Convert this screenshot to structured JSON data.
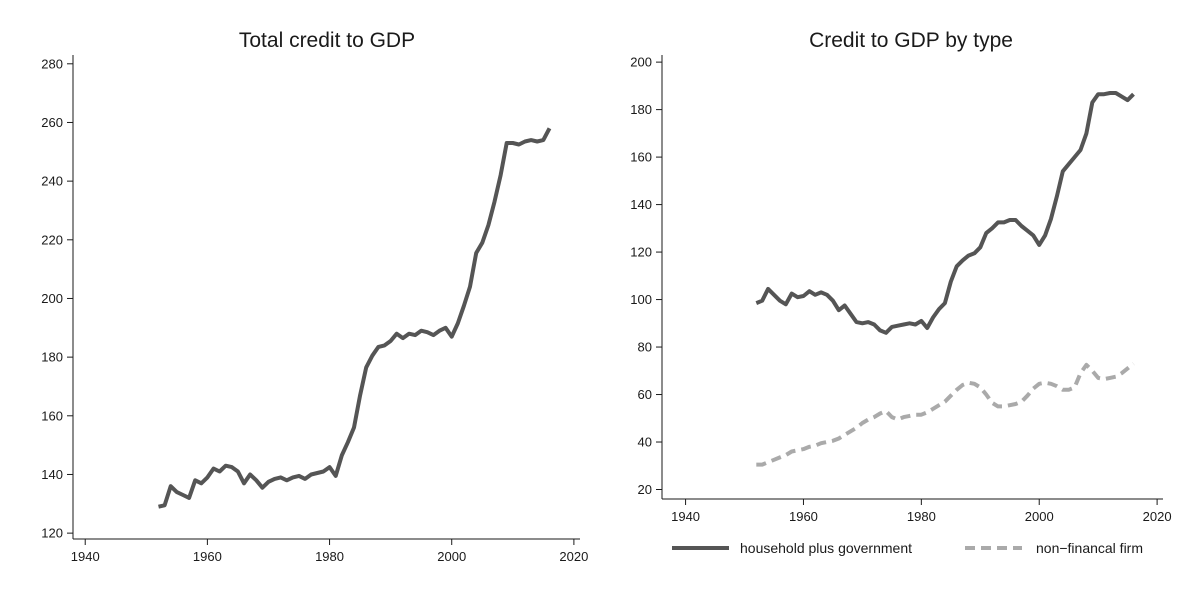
{
  "chart_data": [
    {
      "type": "line",
      "title": "Total credit to GDP",
      "xlabel": "",
      "ylabel": "",
      "xlim": [
        1938,
        2021
      ],
      "ylim": [
        118,
        283
      ],
      "x_ticks": [
        1940,
        1960,
        1980,
        2000,
        2020
      ],
      "y_ticks": [
        120,
        140,
        160,
        180,
        200,
        220,
        240,
        260,
        280
      ],
      "grid": false,
      "series": [
        {
          "color": "#555555",
          "style": "solid",
          "points": [
            [
              1952,
              129
            ],
            [
              1953,
              129.5
            ],
            [
              1954,
              136
            ],
            [
              1955,
              134
            ],
            [
              1956,
              133
            ],
            [
              1957,
              132
            ],
            [
              1958,
              138
            ],
            [
              1959,
              137
            ],
            [
              1960,
              139
            ],
            [
              1961,
              142
            ],
            [
              1962,
              141
            ],
            [
              1963,
              143
            ],
            [
              1964,
              142.5
            ],
            [
              1965,
              141
            ],
            [
              1966,
              137
            ],
            [
              1967,
              140
            ],
            [
              1968,
              138
            ],
            [
              1969,
              135.5
            ],
            [
              1970,
              137.5
            ],
            [
              1971,
              138.5
            ],
            [
              1972,
              139
            ],
            [
              1973,
              138
            ],
            [
              1974,
              139
            ],
            [
              1975,
              139.5
            ],
            [
              1976,
              138.5
            ],
            [
              1977,
              140
            ],
            [
              1978,
              140.5
            ],
            [
              1979,
              141
            ],
            [
              1980,
              142.5
            ],
            [
              1981,
              139.5
            ],
            [
              1982,
              146.5
            ],
            [
              1983,
              151
            ],
            [
              1984,
              156
            ],
            [
              1985,
              167
            ],
            [
              1986,
              176.5
            ],
            [
              1987,
              180.5
            ],
            [
              1988,
              183.5
            ],
            [
              1989,
              184
            ],
            [
              1990,
              185.5
            ],
            [
              1991,
              188
            ],
            [
              1992,
              186.5
            ],
            [
              1993,
              188
            ],
            [
              1994,
              187.5
            ],
            [
              1995,
              189
            ],
            [
              1996,
              188.5
            ],
            [
              1997,
              187.5
            ],
            [
              1998,
              189
            ],
            [
              1999,
              190
            ],
            [
              2000,
              187
            ],
            [
              2001,
              191.5
            ],
            [
              2002,
              197.5
            ],
            [
              2003,
              204
            ],
            [
              2004,
              215.5
            ],
            [
              2005,
              219
            ],
            [
              2006,
              225
            ],
            [
              2007,
              233
            ],
            [
              2008,
              242
            ],
            [
              2009,
              253
            ],
            [
              2010,
              253
            ],
            [
              2011,
              252.5
            ],
            [
              2012,
              253.5
            ],
            [
              2013,
              254
            ],
            [
              2014,
              253.5
            ],
            [
              2015,
              254
            ],
            [
              2016,
              258
            ]
          ]
        }
      ]
    },
    {
      "type": "line",
      "title": "Credit to GDP by type",
      "xlabel": "",
      "ylabel": "",
      "xlim": [
        1936,
        2021
      ],
      "ylim": [
        16,
        203
      ],
      "x_ticks": [
        1940,
        1960,
        1980,
        2000,
        2020
      ],
      "y_ticks": [
        20,
        40,
        60,
        80,
        100,
        120,
        140,
        160,
        180,
        200
      ],
      "grid": false,
      "legend_position": "bottom",
      "series": [
        {
          "name": "household plus government",
          "color": "#555555",
          "style": "solid",
          "points": [
            [
              1952,
              98.5
            ],
            [
              1953,
              99.5
            ],
            [
              1954,
              104.5
            ],
            [
              1955,
              102
            ],
            [
              1956,
              99.5
            ],
            [
              1957,
              98
            ],
            [
              1958,
              102.5
            ],
            [
              1959,
              101
            ],
            [
              1960,
              101.5
            ],
            [
              1961,
              103.5
            ],
            [
              1962,
              102
            ],
            [
              1963,
              103
            ],
            [
              1964,
              102
            ],
            [
              1965,
              99.5
            ],
            [
              1966,
              95.5
            ],
            [
              1967,
              97.5
            ],
            [
              1968,
              94
            ],
            [
              1969,
              90.5
            ],
            [
              1970,
              90
            ],
            [
              1971,
              90.5
            ],
            [
              1972,
              89.5
            ],
            [
              1973,
              87
            ],
            [
              1974,
              86
            ],
            [
              1975,
              88.5
            ],
            [
              1976,
              89
            ],
            [
              1977,
              89.5
            ],
            [
              1978,
              90
            ],
            [
              1979,
              89.5
            ],
            [
              1980,
              91
            ],
            [
              1981,
              88
            ],
            [
              1982,
              92.5
            ],
            [
              1983,
              96
            ],
            [
              1984,
              98.5
            ],
            [
              1985,
              107.5
            ],
            [
              1986,
              114
            ],
            [
              1987,
              116.5
            ],
            [
              1988,
              118.5
            ],
            [
              1989,
              119.5
            ],
            [
              1990,
              122
            ],
            [
              1991,
              128
            ],
            [
              1992,
              130
            ],
            [
              1993,
              132.5
            ],
            [
              1994,
              132.5
            ],
            [
              1995,
              133.5
            ],
            [
              1996,
              133.5
            ],
            [
              1997,
              131
            ],
            [
              1998,
              129
            ],
            [
              1999,
              127
            ],
            [
              2000,
              123
            ],
            [
              2001,
              127
            ],
            [
              2002,
              134
            ],
            [
              2003,
              143.5
            ],
            [
              2004,
              154
            ],
            [
              2005,
              157
            ],
            [
              2006,
              160
            ],
            [
              2007,
              163
            ],
            [
              2008,
              170
            ],
            [
              2009,
              183
            ],
            [
              2010,
              186.5
            ],
            [
              2011,
              186.5
            ],
            [
              2012,
              187
            ],
            [
              2013,
              187
            ],
            [
              2014,
              185.5
            ],
            [
              2015,
              184
            ],
            [
              2016,
              186.5
            ]
          ]
        },
        {
          "name": "non−financal firm",
          "color": "#aaaaaa",
          "style": "dashed",
          "points": [
            [
              1952,
              30.5
            ],
            [
              1953,
              30.5
            ],
            [
              1954,
              31.5
            ],
            [
              1955,
              32.5
            ],
            [
              1956,
              33.5
            ],
            [
              1957,
              34.5
            ],
            [
              1958,
              36
            ],
            [
              1959,
              36.5
            ],
            [
              1960,
              37
            ],
            [
              1961,
              38
            ],
            [
              1962,
              38.5
            ],
            [
              1963,
              39.5
            ],
            [
              1964,
              40
            ],
            [
              1965,
              40.5
            ],
            [
              1966,
              41.5
            ],
            [
              1967,
              43
            ],
            [
              1968,
              44.5
            ],
            [
              1969,
              46
            ],
            [
              1970,
              48
            ],
            [
              1971,
              49.5
            ],
            [
              1972,
              50.5
            ],
            [
              1973,
              52
            ],
            [
              1974,
              53
            ],
            [
              1975,
              50.5
            ],
            [
              1976,
              49.5
            ],
            [
              1977,
              50.5
            ],
            [
              1978,
              51
            ],
            [
              1979,
              51.5
            ],
            [
              1980,
              51.5
            ],
            [
              1981,
              52.5
            ],
            [
              1982,
              54
            ],
            [
              1983,
              55.5
            ],
            [
              1984,
              57
            ],
            [
              1985,
              59.5
            ],
            [
              1986,
              62
            ],
            [
              1987,
              64
            ],
            [
              1988,
              65
            ],
            [
              1989,
              64.5
            ],
            [
              1990,
              63
            ],
            [
              1991,
              60
            ],
            [
              1992,
              56.5
            ],
            [
              1993,
              55
            ],
            [
              1994,
              55
            ],
            [
              1995,
              55.5
            ],
            [
              1996,
              56
            ],
            [
              1997,
              57
            ],
            [
              1998,
              59.5
            ],
            [
              1999,
              62.5
            ],
            [
              2000,
              64.5
            ],
            [
              2001,
              65
            ],
            [
              2002,
              64.5
            ],
            [
              2003,
              63.5
            ],
            [
              2004,
              62
            ],
            [
              2005,
              62
            ],
            [
              2006,
              63
            ],
            [
              2007,
              69
            ],
            [
              2008,
              72.5
            ],
            [
              2009,
              70
            ],
            [
              2010,
              67
            ],
            [
              2011,
              66.5
            ],
            [
              2012,
              67
            ],
            [
              2013,
              67.5
            ],
            [
              2014,
              69
            ],
            [
              2015,
              71
            ],
            [
              2016,
              73
            ]
          ]
        }
      ]
    }
  ]
}
